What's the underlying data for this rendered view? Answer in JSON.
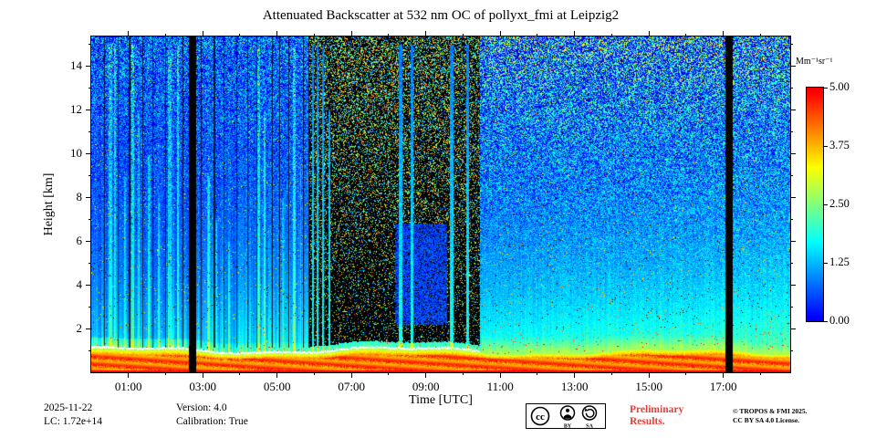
{
  "chart_data": {
    "type": "heatmap",
    "title": "Attenuated Backscatter at 532 nm OC of pollyxt_fmi at Leipzig2",
    "xlabel": "Time [UTC]",
    "ylabel": "Height [km]",
    "x_range_hours": [
      0,
      18.8
    ],
    "y_range_km": [
      0,
      15.34
    ],
    "x_ticks": [
      {
        "h": 1,
        "label": "01:00"
      },
      {
        "h": 3,
        "label": "03:00"
      },
      {
        "h": 5,
        "label": "05:00"
      },
      {
        "h": 7,
        "label": "07:00"
      },
      {
        "h": 9,
        "label": "09:00"
      },
      {
        "h": 11,
        "label": "11:00"
      },
      {
        "h": 13,
        "label": "13:00"
      },
      {
        "h": 15,
        "label": "15:00"
      },
      {
        "h": 17,
        "label": "17:00"
      }
    ],
    "x_minor_hours": [
      2,
      4,
      6,
      8,
      10,
      12,
      14,
      16,
      18
    ],
    "y_ticks_km": [
      2,
      4,
      6,
      8,
      10,
      12,
      14
    ],
    "y_minor_km": [
      1,
      3,
      5,
      7,
      9,
      11,
      13,
      15
    ],
    "grid": false,
    "colorbar": {
      "label": "Mm⁻¹sr⁻¹",
      "vmin": 0,
      "vmax": 5,
      "colormap": "jet",
      "ticks": [
        {
          "v": 5,
          "label": "5.00"
        },
        {
          "v": 3.75,
          "label": "3.75"
        },
        {
          "v": 2.5,
          "label": "2.50"
        },
        {
          "v": 1.25,
          "label": "1.25"
        },
        {
          "v": 0,
          "label": "0.00"
        }
      ]
    },
    "features": {
      "gaps_hours": [
        [
          2.62,
          2.8
        ],
        [
          17.05,
          17.23
        ]
      ],
      "attenuated_dark_region": {
        "t": [
          5.85,
          10.45
        ],
        "above_boundary_km": 0.28
      },
      "contour_end_hour": 10.45,
      "boundary_layer_top_km_mean": 1.05,
      "boundary_layer_surface_value": 4.8,
      "blue_patch": {
        "t": [
          8.15,
          9.55
        ],
        "h": [
          2.2,
          6.8
        ]
      },
      "bright_columns": [
        [
          0.5,
          0.1,
          15,
          0.9
        ],
        [
          0.63,
          0.06,
          15,
          1.2
        ],
        [
          0.9,
          0.05,
          9,
          0.8
        ],
        [
          1.1,
          0.08,
          15,
          1.1
        ],
        [
          1.26,
          0.05,
          12,
          0.9
        ],
        [
          1.55,
          0.06,
          10,
          0.8
        ],
        [
          1.8,
          0.05,
          8,
          0.7
        ],
        [
          2.1,
          0.1,
          15,
          1.0
        ],
        [
          2.32,
          0.06,
          15,
          1.2
        ],
        [
          3.15,
          0.08,
          9,
          0.9
        ],
        [
          3.36,
          0.05,
          7,
          0.7
        ],
        [
          3.7,
          0.04,
          6,
          0.6
        ],
        [
          4.5,
          0.08,
          15,
          0.9
        ],
        [
          4.66,
          0.05,
          12,
          1.1
        ],
        [
          5.15,
          0.05,
          8,
          0.7
        ],
        [
          5.45,
          0.07,
          15,
          0.9
        ],
        [
          5.62,
          0.04,
          10,
          0.8
        ],
        [
          5.95,
          0.06,
          15,
          1.3
        ],
        [
          6.08,
          0.04,
          15,
          1.1
        ],
        [
          6.22,
          0.05,
          15,
          1.2
        ],
        [
          6.4,
          0.04,
          12,
          1.0
        ],
        [
          8.3,
          0.09,
          15,
          1.3
        ],
        [
          8.62,
          0.06,
          15,
          1.1
        ],
        [
          9.68,
          0.1,
          15,
          1.3
        ],
        [
          10.12,
          0.08,
          15,
          1.2
        ]
      ],
      "dark_lines": [
        [
          0.35,
          0.03
        ],
        [
          0.72,
          0.025
        ],
        [
          1.02,
          0.03
        ],
        [
          1.38,
          0.025
        ],
        [
          1.65,
          0.03
        ],
        [
          2.0,
          0.025
        ],
        [
          2.45,
          0.03
        ],
        [
          2.95,
          0.025
        ],
        [
          3.3,
          0.03
        ],
        [
          3.55,
          0.025
        ],
        [
          3.9,
          0.03
        ],
        [
          4.2,
          0.025
        ],
        [
          4.45,
          0.03
        ],
        [
          4.85,
          0.025
        ],
        [
          5.05,
          0.03
        ],
        [
          5.3,
          0.025
        ],
        [
          5.7,
          0.03
        ],
        [
          5.86,
          0.04
        ]
      ]
    }
  },
  "footer": {
    "date": "2025-11-22",
    "lc": "LC: 1.72e+14",
    "version": "Version: 4.0",
    "calibration": "Calibration: True",
    "preliminary_line1": "Preliminary",
    "preliminary_line2": "Results.",
    "license_line1": "© TROPOS & FMI 2025.",
    "license_line2": "CC BY SA 4.0 License."
  },
  "badge": {
    "cc": "cc",
    "by": "BY",
    "sa": "SA"
  },
  "colors": {
    "preliminary": "#e5413a",
    "frame": "#000000"
  }
}
